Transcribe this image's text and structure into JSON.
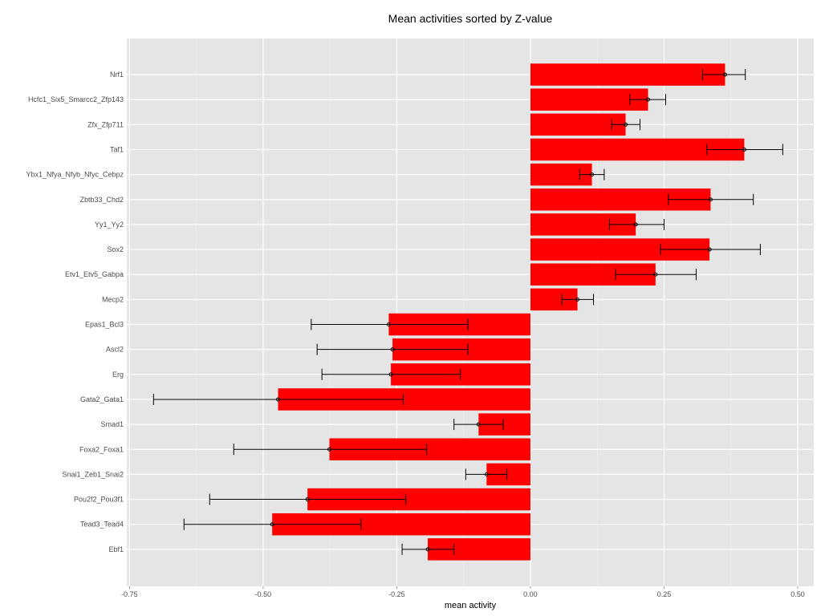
{
  "chart_data": {
    "type": "bar",
    "orientation": "horizontal",
    "title": "Mean activities sorted by Z-value",
    "xlabel": "mean activity",
    "ylabel": "",
    "xlim": [
      -0.755,
      0.53
    ],
    "xticks": [
      -0.75,
      -0.5,
      -0.25,
      0.0,
      0.25,
      0.5
    ],
    "xtick_labels": [
      "-0.75",
      "-0.50",
      "-0.25",
      "0.00",
      "0.25",
      "0.50"
    ],
    "grid": true,
    "legend": "none",
    "categories": [
      "Nrf1",
      "Hcfc1_Six5_Smarcc2_Zfp143",
      "Zfx_Zfp711",
      "Taf1",
      "Ybx1_Nfya_Nfyb_Nfyc_Cebpz",
      "Zbtb33_Chd2",
      "Yy1_Yy2",
      "Sox2",
      "Etv1_Etv5_Gabpa",
      "Mecp2",
      "Epas1_Bcl3",
      "Ascl2",
      "Erg",
      "Gata2_Gata1",
      "Smad1",
      "Foxa2_Foxa1",
      "Snai1_Zeb1_Snai2",
      "Pou2f2_Pou3f1",
      "Tead3_Tead4",
      "Ebf1"
    ],
    "values": [
      0.364,
      0.22,
      0.178,
      0.4,
      0.115,
      0.337,
      0.197,
      0.335,
      0.234,
      0.088,
      -0.265,
      -0.258,
      -0.261,
      -0.472,
      -0.097,
      -0.376,
      -0.082,
      -0.417,
      -0.483,
      -0.192
    ],
    "error_low": [
      0.322,
      0.186,
      0.152,
      0.33,
      0.092,
      0.258,
      0.148,
      0.243,
      0.159,
      0.059,
      -0.41,
      -0.399,
      -0.39,
      -0.705,
      -0.143,
      -0.555,
      -0.121,
      -0.6,
      -0.648,
      -0.24
    ],
    "error_high": [
      0.402,
      0.253,
      0.205,
      0.472,
      0.138,
      0.417,
      0.25,
      0.43,
      0.31,
      0.118,
      -0.117,
      -0.117,
      -0.131,
      -0.238,
      -0.051,
      -0.194,
      -0.044,
      -0.233,
      -0.317,
      -0.143
    ],
    "colors": {
      "bar_fill": "#ff0000",
      "panel_bg": "#e5e5e5",
      "grid_major": "#ffffff",
      "grid_minor": "#f2f2f2",
      "error_bar": "#000000"
    }
  }
}
